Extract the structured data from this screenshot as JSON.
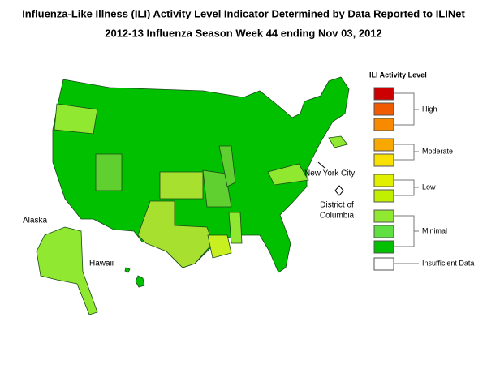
{
  "header": {
    "title": "Influenza-Like Illness (ILI) Activity Level Indicator Determined by Data Reported to ILINet",
    "subtitle": "2012-13  Influenza Season Week  44 ending Nov 03, 2012"
  },
  "legend": {
    "title": "ILI Activity Level",
    "groups": [
      "High",
      "Moderate",
      "Low",
      "Minimal",
      "Insufficient Data"
    ]
  },
  "map_labels": {
    "new_york_city": "New York City",
    "district_of_columbia": [
      "District of",
      "Columbia"
    ],
    "alaska": "Alaska",
    "hawaii": "Hawaii"
  }
}
